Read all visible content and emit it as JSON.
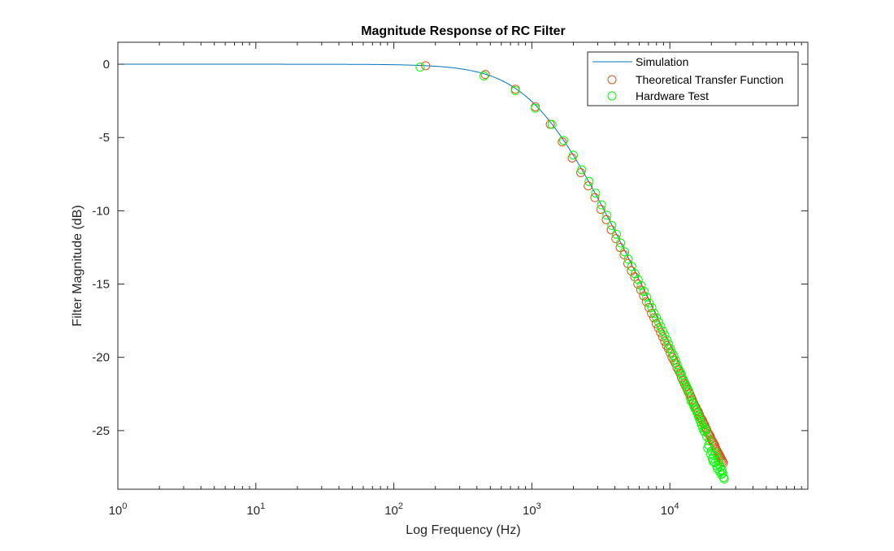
{
  "colors": {
    "simulation": "#0072BD",
    "theoretical": "#D95319",
    "hardware": "#00FF00",
    "axis": "#262626"
  },
  "chart_data": {
    "type": "line",
    "title": "Magnitude Response of RC Filter",
    "xlabel": "Log Frequency (Hz)",
    "ylabel": "Filter Magnitude (dB)",
    "xscale": "log",
    "xlim": [
      1,
      100000
    ],
    "ylim": [
      -29,
      1.5
    ],
    "x_ticks": [
      {
        "value": 1,
        "base": "10",
        "exp": "0"
      },
      {
        "value": 10,
        "base": "10",
        "exp": "1"
      },
      {
        "value": 100,
        "base": "10",
        "exp": "2"
      },
      {
        "value": 1000,
        "base": "10",
        "exp": "3"
      },
      {
        "value": 10000,
        "base": "10",
        "exp": "4"
      }
    ],
    "y_ticks": [
      0,
      -5,
      -10,
      -15,
      -20,
      -25
    ],
    "y_tick_labels": [
      "0",
      "-5",
      "-10",
      "-15",
      "-20",
      "-25"
    ],
    "grid": false,
    "legend_position": "top-right",
    "legend": [
      "Simulation",
      "Theoretical Transfer Function",
      "Hardware Test"
    ],
    "series": [
      {
        "name": "Simulation",
        "style": "line",
        "cutoff_hz": 1120,
        "x_range": [
          1,
          25000
        ]
      },
      {
        "name": "Theoretical Transfer Function",
        "style": "circle",
        "x": [
          170,
          460,
          760,
          1060,
          1360,
          1660,
          1960,
          2260,
          2560,
          2860,
          3160,
          3460,
          3760,
          4060,
          4360,
          4660,
          4960,
          5260,
          5560,
          5860,
          6160,
          6460,
          6760,
          7060,
          7360,
          7660,
          7960,
          8260,
          8560,
          8860,
          9160,
          9460,
          9760,
          10060,
          10360,
          10660,
          10960,
          11260,
          11560,
          11860,
          12160,
          12460,
          12760,
          13060,
          13360,
          13660,
          13960,
          14260,
          14560,
          14860,
          15160,
          15460,
          15760,
          16060,
          16360,
          16660,
          16960,
          17260,
          17560,
          17860,
          18160,
          18460,
          18760,
          19060,
          19360,
          19660,
          19960,
          20260,
          20560,
          20860,
          21160,
          21460,
          21760,
          22060,
          22360,
          22660,
          22960,
          23260,
          23560,
          23860,
          24160,
          24460
        ],
        "values": [
          -0.1,
          -0.7,
          -1.7,
          -2.9,
          -4.1,
          -5.3,
          -6.4,
          -7.4,
          -8.3,
          -9.1,
          -9.9,
          -10.6,
          -11.3,
          -11.9,
          -12.5,
          -13.0,
          -13.6,
          -14.1,
          -14.5,
          -15.0,
          -15.4,
          -15.8,
          -16.2,
          -16.6,
          -17.0,
          -17.3,
          -17.7,
          -18.0,
          -18.3,
          -18.6,
          -18.9,
          -19.2,
          -19.4,
          -19.7,
          -20.0,
          -20.2,
          -20.4,
          -20.7,
          -20.9,
          -21.1,
          -21.4,
          -21.6,
          -21.8,
          -22.0,
          -22.2,
          -22.4,
          -22.5,
          -22.7,
          -22.9,
          -23.1,
          -23.3,
          -23.4,
          -23.6,
          -23.7,
          -23.9,
          -24.1,
          -24.2,
          -24.3,
          -24.5,
          -24.6,
          -24.8,
          -24.9,
          -25.1,
          -25.2,
          -25.3,
          -25.4,
          -25.6,
          -25.7,
          -25.8,
          -25.9,
          -26.0,
          -26.2,
          -26.3,
          -26.4,
          -26.5,
          -26.6,
          -26.7,
          -26.8,
          -26.9,
          -27.0,
          -27.1,
          -27.2
        ]
      },
      {
        "name": "Hardware Test",
        "style": "circle",
        "x": [
          155,
          450,
          760,
          1060,
          1400,
          1700,
          2000,
          2300,
          2600,
          2900,
          3200,
          3500,
          3800,
          4100,
          4400,
          4700,
          5000,
          5300,
          5600,
          5900,
          6200,
          6500,
          6800,
          7100,
          7400,
          7700,
          8000,
          8300,
          8600,
          8900,
          9200,
          9500,
          9800,
          10100,
          10400,
          10700,
          11000,
          11300,
          11600,
          11900,
          12200,
          12500,
          12800,
          13100,
          13400,
          13700,
          14000,
          14300,
          14600,
          14900,
          15200,
          15500,
          15800,
          16100,
          16400,
          16700,
          17000,
          17300,
          17600,
          17900,
          18200,
          18500,
          18800,
          19100,
          19400,
          19700,
          20000,
          20300,
          20600,
          20900,
          21200,
          21500,
          21800,
          22100,
          22400,
          22700,
          23000,
          23300,
          23600,
          23900,
          24200,
          24500,
          24800
        ],
        "values": [
          -0.2,
          -0.8,
          -1.8,
          -3.0,
          -4.1,
          -5.2,
          -6.2,
          -7.2,
          -8.0,
          -8.8,
          -9.6,
          -10.3,
          -11.0,
          -11.6,
          -12.2,
          -12.8,
          -13.3,
          -13.8,
          -14.3,
          -14.7,
          -15.1,
          -15.5,
          -15.9,
          -16.3,
          -16.6,
          -17.0,
          -17.3,
          -17.6,
          -17.9,
          -18.2,
          -18.5,
          -18.8,
          -19.1,
          -19.4,
          -19.7,
          -19.9,
          -20.2,
          -20.5,
          -20.8,
          -21.0,
          -21.2,
          -21.5,
          -21.7,
          -21.9,
          -22.1,
          -22.3,
          -22.7,
          -23.0,
          -23.1,
          -23.3,
          -23.5,
          -23.6,
          -23.8,
          -24.0,
          -24.2,
          -24.4,
          -24.6,
          -24.8,
          -25.0,
          -25.1,
          -24.9,
          -25.4,
          -26.2,
          -26.0,
          -25.7,
          -26.6,
          -26.4,
          -26.9,
          -27.1,
          -26.7,
          -27.2,
          -26.5,
          -27.4,
          -27.6,
          -27.0,
          -27.3,
          -27.8,
          -27.5,
          -28.0,
          -27.7,
          -27.9,
          -28.2,
          -28.3
        ]
      }
    ]
  }
}
